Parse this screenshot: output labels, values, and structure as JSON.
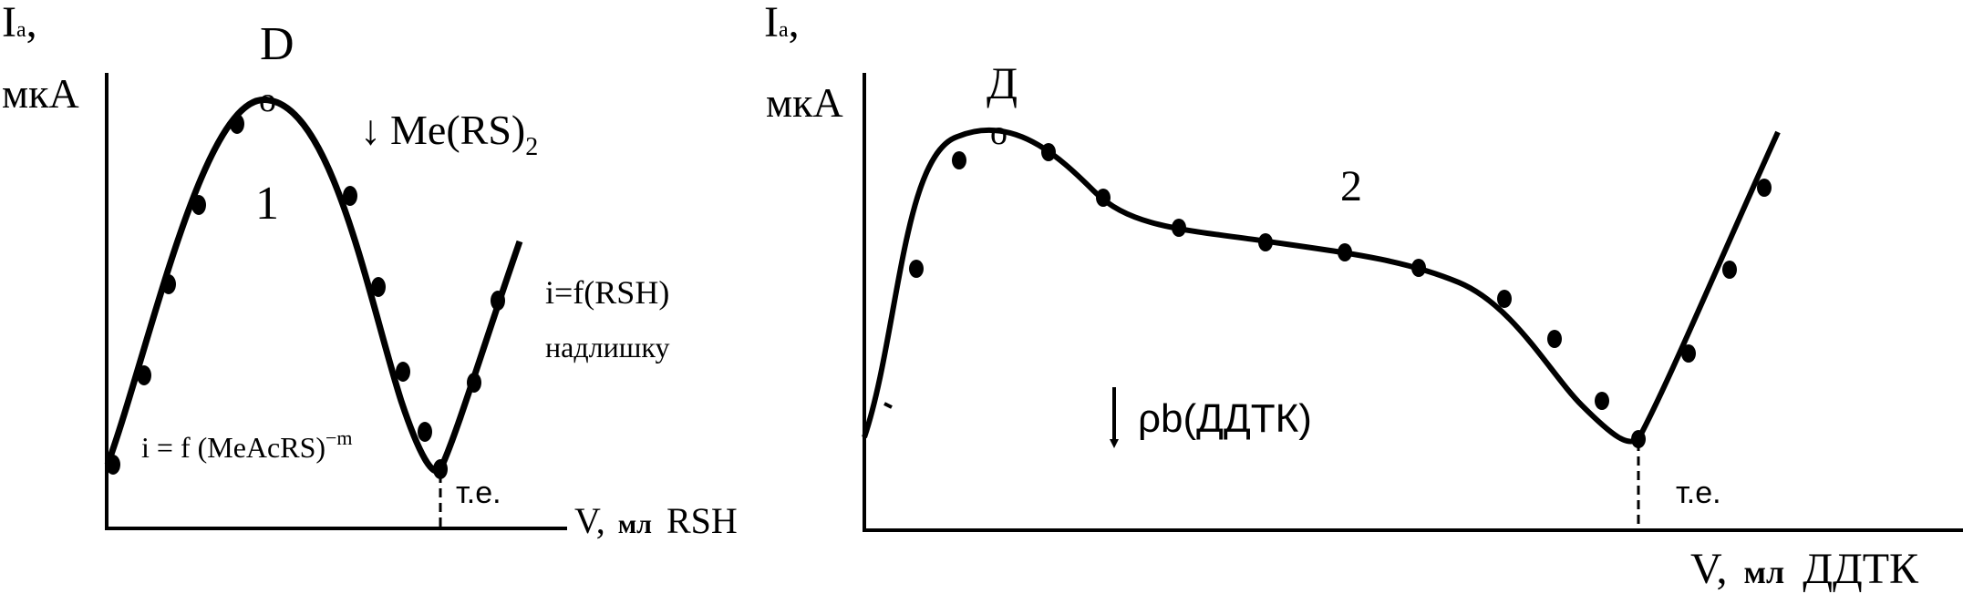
{
  "left_panel": {
    "y_label_main": "I",
    "y_label_sub": "a",
    "y_label_comma": ",",
    "y_unit": "мкА",
    "point_label": "D",
    "point_marker": "o",
    "curve_number": "1",
    "arrow_symbol": "↓",
    "precipitate_main": "Me(RS)",
    "precipitate_sub": "2",
    "formula_excess": "i=f(RSH)",
    "excess_word": "надлишку",
    "formula_left": "i = f (MeAcRS)",
    "formula_left_exp": "−m",
    "endpoint_label": "т.е.",
    "x_label_v": "V,",
    "x_label_unit": "мл",
    "x_label_reagent": "RSH"
  },
  "right_panel": {
    "y_label_main": "I",
    "y_label_sub": "a",
    "y_label_comma": ",",
    "y_unit": "мкА",
    "point_label": "Д",
    "point_marker": "o",
    "curve_number": "2",
    "precipitate": "ρb(ДДТК)",
    "endpoint_label": "т.е.",
    "x_label_v": "V,",
    "x_label_unit": "мл",
    "x_label_reagent": "ДДТК"
  },
  "colors": {
    "ink": "#000000",
    "background": "#ffffff"
  }
}
